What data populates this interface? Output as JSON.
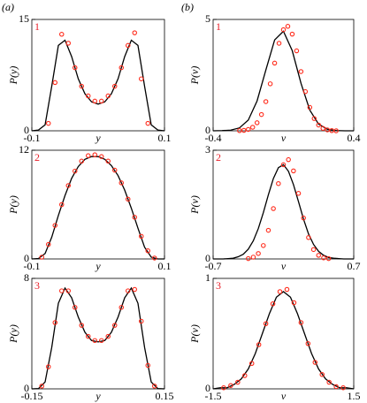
{
  "column_labels": [
    "(a)",
    "(b)"
  ],
  "chart_data": [
    {
      "type": "line",
      "panel_label": "1",
      "xlabel": "y",
      "ylabel": "P(y)",
      "xlim": [
        -0.1,
        0.1
      ],
      "ylim": [
        0,
        15
      ],
      "xticks": [
        -0.1,
        0.1
      ],
      "yticks": [
        0,
        15
      ],
      "series": [
        {
          "style": "line",
          "color": "#000000",
          "x": [
            -0.1,
            -0.09,
            -0.08,
            -0.07,
            -0.06,
            -0.05,
            -0.04,
            -0.03,
            -0.02,
            -0.01,
            0,
            0.01,
            0.02,
            0.03,
            0.04,
            0.05,
            0.06,
            0.07,
            0.08,
            0.09,
            0.1
          ],
          "values": [
            0,
            0.1,
            0.8,
            6,
            11.5,
            12.2,
            10,
            7,
            5,
            3.9,
            3.6,
            3.9,
            5,
            7,
            10,
            12.2,
            11.5,
            6,
            0.8,
            0.1,
            0
          ]
        },
        {
          "style": "markers",
          "color": "#ff2a1a",
          "x": [
            -0.075,
            -0.065,
            -0.055,
            -0.045,
            -0.035,
            -0.025,
            -0.015,
            -0.005,
            0.005,
            0.015,
            0.025,
            0.035,
            0.045,
            0.055,
            0.065,
            0.075
          ],
          "values": [
            1,
            6.5,
            13,
            11.8,
            8.5,
            6,
            4.7,
            4,
            4,
            4.7,
            6,
            8.5,
            11.5,
            13.2,
            7,
            1
          ]
        }
      ]
    },
    {
      "type": "line",
      "panel_label": "1",
      "xlabel": "v",
      "ylabel": "P(v)",
      "xlim": [
        -0.4,
        0.4
      ],
      "ylim": [
        0,
        5
      ],
      "xticks": [
        -0.4,
        0.4
      ],
      "yticks": [
        0,
        5
      ],
      "series": [
        {
          "style": "line",
          "color": "#000000",
          "x": [
            -0.4,
            -0.35,
            -0.3,
            -0.25,
            -0.2,
            -0.15,
            -0.1,
            -0.05,
            0,
            0.05,
            0.1,
            0.15,
            0.2,
            0.25,
            0.3,
            0.35,
            0.4
          ],
          "values": [
            0,
            0.01,
            0.03,
            0.13,
            0.48,
            1.34,
            2.73,
            4.08,
            4.47,
            3.6,
            2.13,
            0.93,
            0.3,
            0.07,
            0.01,
            0,
            0
          ]
        },
        {
          "style": "markers",
          "color": "#ff2a1a",
          "x": [
            -0.25,
            -0.225,
            -0.2,
            -0.175,
            -0.15,
            -0.125,
            -0.1,
            -0.075,
            -0.05,
            -0.025,
            0,
            0.025,
            0.05,
            0.075,
            0.1,
            0.125,
            0.15,
            0.175,
            0.2,
            0.225,
            0.25,
            0.275,
            0.3
          ],
          "values": [
            0.01,
            0.02,
            0.06,
            0.16,
            0.36,
            0.73,
            1.31,
            2.11,
            3.04,
            3.93,
            4.54,
            4.69,
            4.34,
            3.59,
            2.66,
            1.76,
            1.05,
            0.55,
            0.26,
            0.11,
            0.04,
            0.01,
            0
          ]
        }
      ]
    },
    {
      "type": "line",
      "panel_label": "2",
      "xlabel": "y",
      "ylabel": "P(y)",
      "xlim": [
        -0.1,
        0.1
      ],
      "ylim": [
        0,
        12
      ],
      "xticks": [
        -0.1,
        0.1
      ],
      "yticks": [
        0,
        12
      ],
      "series": [
        {
          "style": "line",
          "color": "#000000",
          "x": [
            -0.1,
            -0.09,
            -0.08,
            -0.07,
            -0.06,
            -0.05,
            -0.04,
            -0.03,
            -0.02,
            -0.01,
            0,
            0.01,
            0.02,
            0.03,
            0.04,
            0.05,
            0.06,
            0.07,
            0.08,
            0.09,
            0.1
          ],
          "values": [
            0,
            0.05,
            0.6,
            2.4,
            4.8,
            7,
            8.9,
            10.2,
            11,
            11.3,
            11.3,
            11,
            10.3,
            9.2,
            7.6,
            5.6,
            3.4,
            1.3,
            0.2,
            0,
            0
          ]
        },
        {
          "style": "markers",
          "color": "#ff2a1a",
          "x": [
            -0.085,
            -0.075,
            -0.065,
            -0.055,
            -0.045,
            -0.035,
            -0.025,
            -0.015,
            -0.005,
            0.005,
            0.015,
            0.025,
            0.035,
            0.045,
            0.055,
            0.065,
            0.075,
            0.085
          ],
          "values": [
            0.2,
            1.6,
            3.7,
            6,
            8.1,
            9.7,
            10.8,
            11.4,
            11.5,
            11.3,
            10.8,
            9.8,
            8.4,
            6.6,
            4.6,
            2.5,
            0.9,
            0.1
          ]
        }
      ]
    },
    {
      "type": "line",
      "panel_label": "2",
      "xlabel": "v",
      "ylabel": "P(v)",
      "xlim": [
        -0.7,
        0.7
      ],
      "ylim": [
        0,
        3
      ],
      "xticks": [
        -0.7,
        0.7
      ],
      "yticks": [
        0,
        3
      ],
      "series": [
        {
          "style": "line",
          "color": "#000000",
          "x": [
            -0.7,
            -0.65,
            -0.6,
            -0.55,
            -0.5,
            -0.45,
            -0.4,
            -0.35,
            -0.3,
            -0.25,
            -0.2,
            -0.15,
            -0.1,
            -0.05,
            0,
            0.05,
            0.1,
            0.15,
            0.2,
            0.25,
            0.3,
            0.35,
            0.4,
            0.45,
            0.5,
            0.55,
            0.6,
            0.65,
            0.7
          ],
          "values": [
            0,
            0,
            0,
            0.01,
            0.02,
            0.06,
            0.13,
            0.27,
            0.5,
            0.84,
            1.28,
            1.77,
            2.22,
            2.52,
            2.6,
            2.42,
            2.05,
            1.58,
            1.1,
            0.69,
            0.4,
            0.21,
            0.1,
            0.04,
            0.02,
            0.01,
            0,
            0,
            0
          ]
        },
        {
          "style": "markers",
          "color": "#ff2a1a",
          "x": [
            -0.35,
            -0.3,
            -0.25,
            -0.2,
            -0.15,
            -0.1,
            -0.05,
            0,
            0.05,
            0.1,
            0.15,
            0.2,
            0.25,
            0.3,
            0.35,
            0.4,
            0.45
          ],
          "values": [
            0.01,
            0.05,
            0.15,
            0.37,
            0.79,
            1.39,
            2.08,
            2.6,
            2.74,
            2.43,
            1.81,
            1.13,
            0.59,
            0.26,
            0.1,
            0.03,
            0.01
          ]
        }
      ]
    },
    {
      "type": "line",
      "panel_label": "3",
      "xlabel": "y",
      "ylabel": "P(y)",
      "xlim": [
        -0.15,
        0.15
      ],
      "ylim": [
        0,
        8
      ],
      "xticks": [
        -0.15,
        0.15
      ],
      "yticks": [
        0,
        8
      ],
      "series": [
        {
          "style": "line",
          "color": "#000000",
          "x": [
            -0.15,
            -0.135,
            -0.12,
            -0.105,
            -0.09,
            -0.075,
            -0.06,
            -0.045,
            -0.03,
            -0.015,
            0,
            0.015,
            0.03,
            0.045,
            0.06,
            0.075,
            0.09,
            0.105,
            0.12,
            0.135,
            0.15
          ],
          "values": [
            0,
            0.02,
            0.5,
            3,
            6.2,
            7.3,
            6.6,
            5.2,
            4.1,
            3.5,
            3.4,
            3.5,
            4.1,
            5.2,
            6.6,
            7.3,
            6.2,
            3,
            0.5,
            0.02,
            0
          ]
        },
        {
          "style": "markers",
          "color": "#ff2a1a",
          "x": [
            -0.1275,
            -0.1125,
            -0.0975,
            -0.0825,
            -0.0675,
            -0.0525,
            -0.0375,
            -0.0225,
            -0.0075,
            0.0075,
            0.0225,
            0.0375,
            0.0525,
            0.0675,
            0.0825,
            0.0975,
            0.1125,
            0.1275
          ],
          "values": [
            0.2,
            1.6,
            4.8,
            7.1,
            7.1,
            5.9,
            4.6,
            3.8,
            3.5,
            3.5,
            3.8,
            4.6,
            5.9,
            7.1,
            7.2,
            4.9,
            1.7,
            0.2
          ]
        }
      ]
    },
    {
      "type": "line",
      "panel_label": "3",
      "xlabel": "v",
      "ylabel": "P(v)",
      "xlim": [
        -1.5,
        1.5
      ],
      "ylim": [
        0,
        1
      ],
      "xticks": [
        -1.5,
        1.5
      ],
      "yticks": [
        0,
        1
      ],
      "series": [
        {
          "style": "line",
          "color": "#000000",
          "x": [
            -1.5,
            -1.35,
            -1.2,
            -1.05,
            -0.9,
            -0.75,
            -0.6,
            -0.45,
            -0.3,
            -0.15,
            0,
            0.15,
            0.3,
            0.45,
            0.6,
            0.75,
            0.9,
            1.05,
            1.2,
            1.35,
            1.5
          ],
          "values": [
            0,
            0.01,
            0.01,
            0.04,
            0.09,
            0.18,
            0.32,
            0.5,
            0.68,
            0.83,
            0.88,
            0.83,
            0.68,
            0.5,
            0.32,
            0.18,
            0.09,
            0.04,
            0.01,
            0.01,
            0
          ]
        },
        {
          "style": "markers",
          "color": "#ff2a1a",
          "x": [
            -1.275,
            -1.125,
            -0.975,
            -0.825,
            -0.675,
            -0.525,
            -0.375,
            -0.225,
            -0.075,
            0.075,
            0.225,
            0.375,
            0.525,
            0.675,
            0.825,
            0.975,
            1.125,
            1.275
          ],
          "values": [
            0.01,
            0.03,
            0.06,
            0.12,
            0.23,
            0.4,
            0.59,
            0.77,
            0.88,
            0.9,
            0.78,
            0.6,
            0.41,
            0.24,
            0.13,
            0.06,
            0.02,
            0.01
          ]
        }
      ]
    }
  ]
}
